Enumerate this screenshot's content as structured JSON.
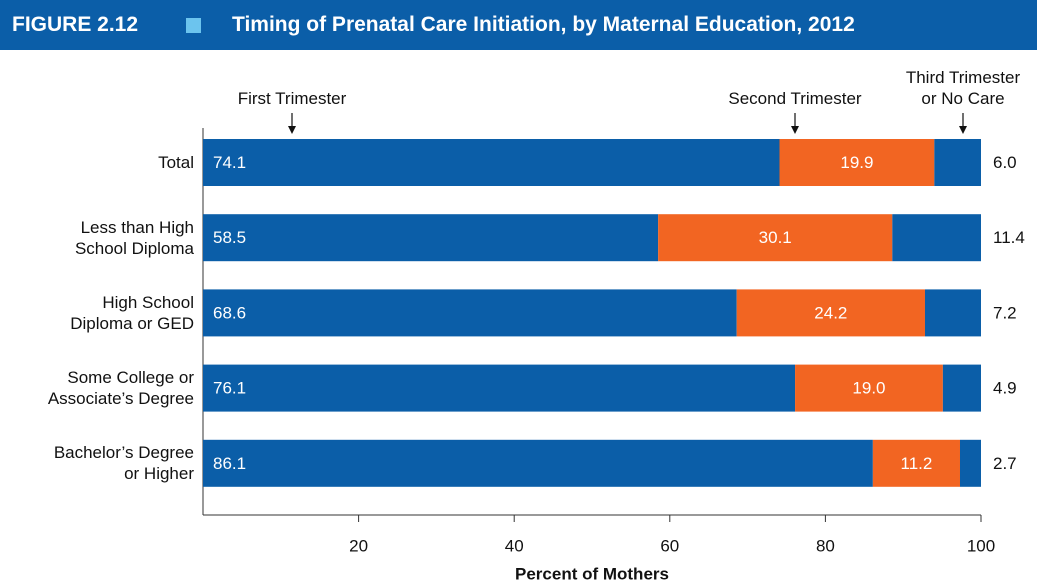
{
  "chart_data": {
    "type": "stacked_bar_horizontal",
    "figure_label": "FIGURE 2.12",
    "title": "Timing of Prenatal Care Initiation, by Maternal Education, 2012",
    "categories": [
      "Total",
      "Less than High\nSchool Diploma",
      "High School\nDiploma or GED",
      "Some College or\nAssociate’s Degree",
      "Bachelor’s Degree\nor Higher"
    ],
    "series": [
      {
        "name": "First Trimester",
        "color": "#0b5ea8",
        "values": [
          74.1,
          58.5,
          68.6,
          76.1,
          86.1
        ]
      },
      {
        "name": "Second Trimester",
        "color": "#f26522",
        "values": [
          19.9,
          30.1,
          24.2,
          19.0,
          11.2
        ],
        "value_labels": [
          "19.9",
          "30.1",
          "24.2",
          "19.0",
          "11.2"
        ]
      },
      {
        "name": "Third Trimester\nor No Care",
        "color": "#0b5ea8",
        "values": [
          6.0,
          11.4,
          7.2,
          4.9,
          2.7
        ],
        "value_labels": [
          "6.0",
          "11.4",
          "7.2",
          "4.9",
          "2.7"
        ]
      }
    ],
    "xlabel": "Percent of Mothers",
    "xlim": [
      0,
      100
    ],
    "xticks": [
      20,
      40,
      60,
      80,
      100
    ]
  }
}
